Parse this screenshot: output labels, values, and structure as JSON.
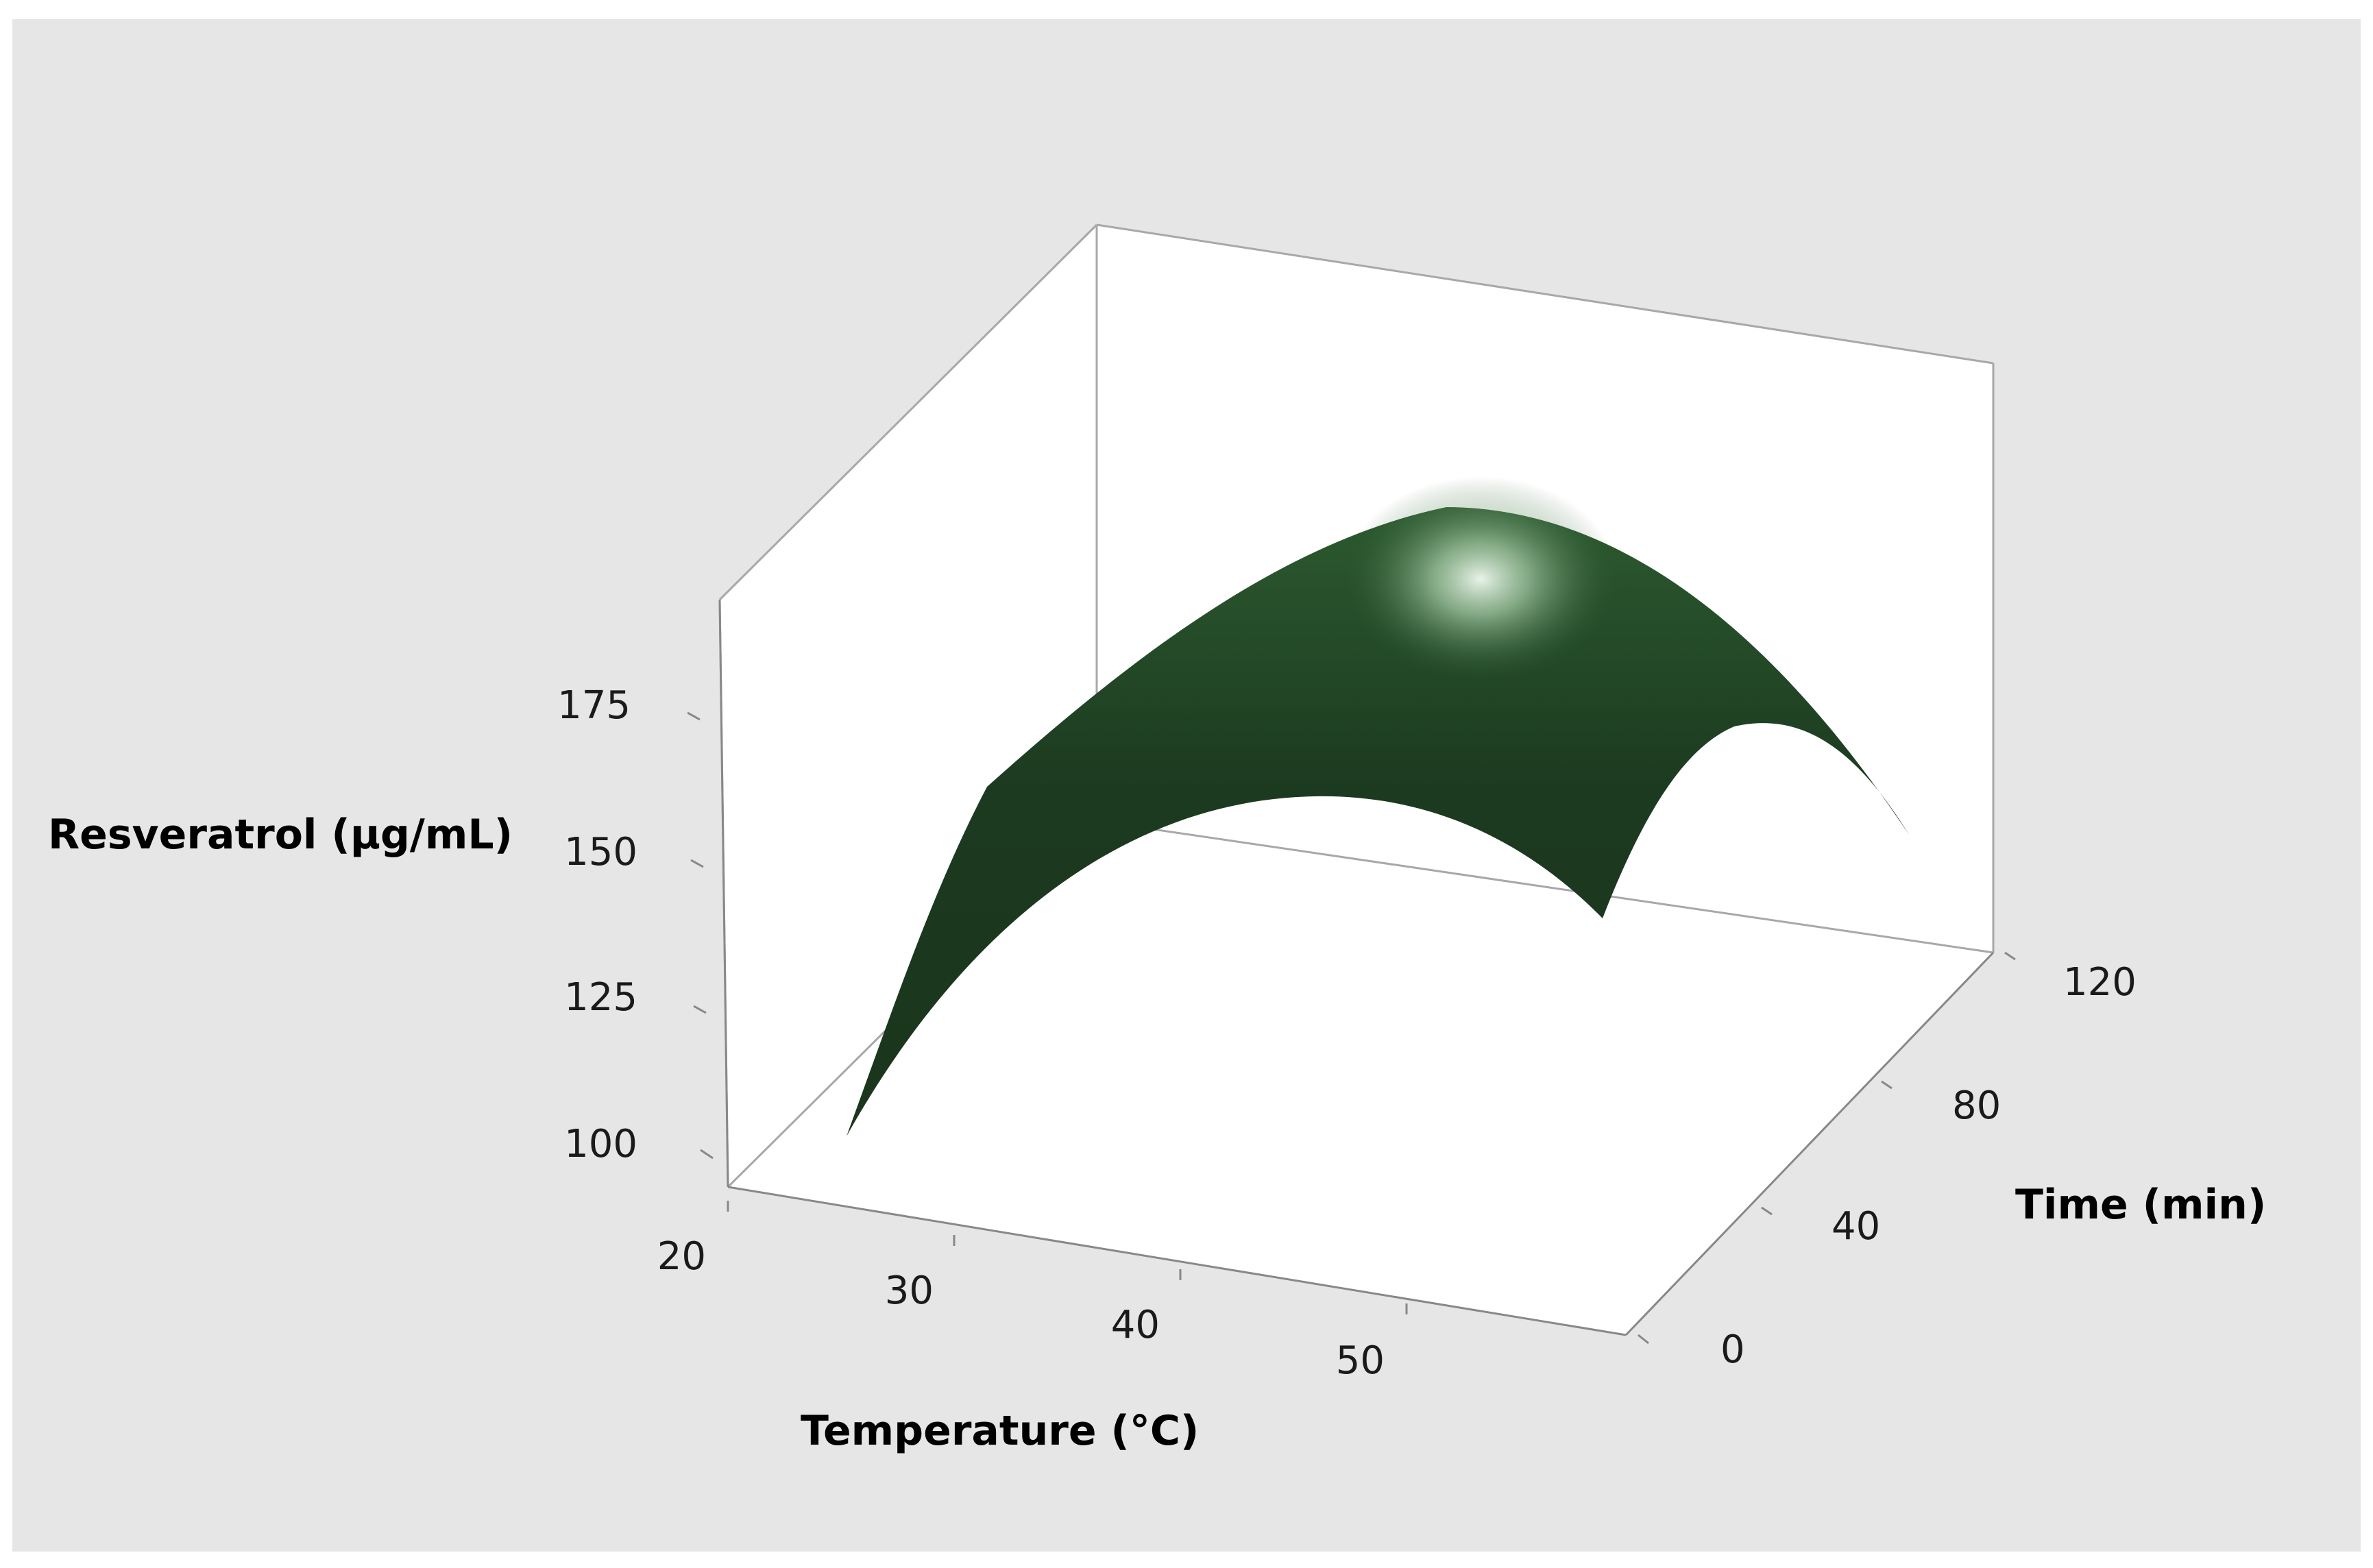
{
  "chart_data": {
    "type": "surface3d",
    "title": "",
    "xlabel": "Temperature (°C)",
    "ylabel": "Time (min)",
    "zlabel": "Resveratrol (µg/mL)",
    "x_ticks": [
      "20",
      "30",
      "40",
      "50"
    ],
    "y_ticks": [
      "0",
      "40",
      "80",
      "120"
    ],
    "z_ticks": [
      "100",
      "125",
      "150",
      "175"
    ],
    "xlim": [
      20,
      60
    ],
    "ylim": [
      0,
      120
    ],
    "zlim": [
      90,
      195
    ],
    "surface_samples": [
      {
        "temperature": 24,
        "time": 0,
        "resveratrol": 105
      },
      {
        "temperature": 24,
        "time": 120,
        "resveratrol": 143
      },
      {
        "temperature": 40,
        "time": 0,
        "resveratrol": 162
      },
      {
        "temperature": 40,
        "time": 120,
        "resveratrol": 196
      },
      {
        "temperature": 58,
        "time": 0,
        "resveratrol": 145
      },
      {
        "temperature": 58,
        "time": 120,
        "resveratrol": 167
      }
    ],
    "surface_color": "#1f3f22",
    "highlight_color": "#eef8ee",
    "background_color": "#e6e6e6",
    "box_line_color": "#a8a8a8",
    "grid": false
  }
}
